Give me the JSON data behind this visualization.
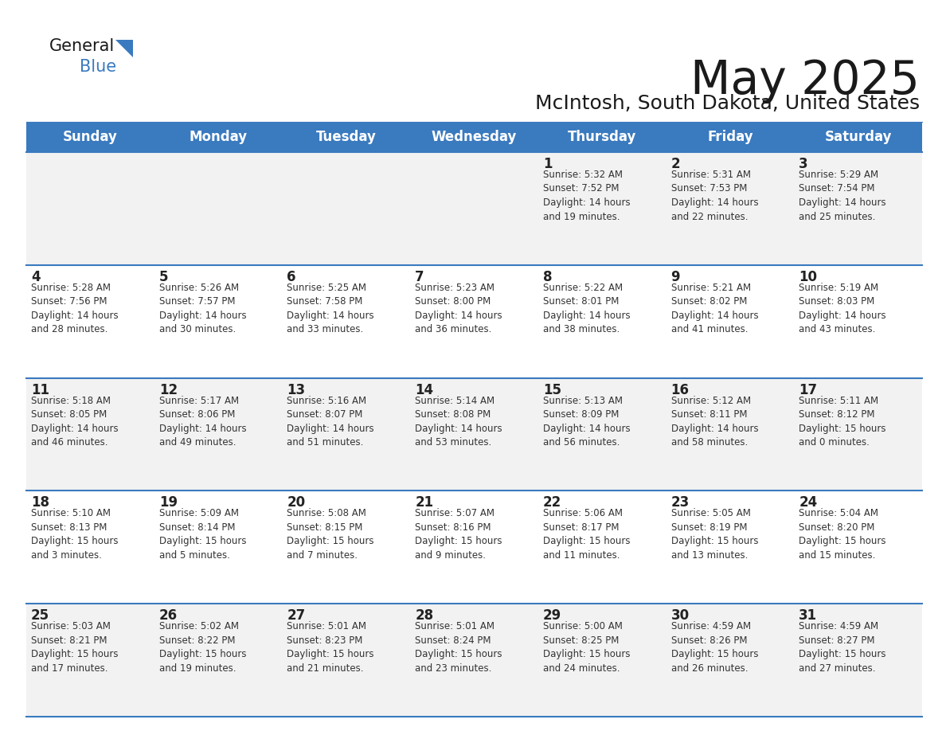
{
  "title": "May 2025",
  "subtitle": "McIntosh, South Dakota, United States",
  "header_color": "#3a7abf",
  "header_text_color": "#ffffff",
  "cell_bg_odd": "#f2f2f2",
  "cell_bg_even": "#ffffff",
  "day_names": [
    "Sunday",
    "Monday",
    "Tuesday",
    "Wednesday",
    "Thursday",
    "Friday",
    "Saturday"
  ],
  "weeks": [
    [
      {
        "day": "",
        "sunrise": "",
        "sunset": "",
        "daylight": ""
      },
      {
        "day": "",
        "sunrise": "",
        "sunset": "",
        "daylight": ""
      },
      {
        "day": "",
        "sunrise": "",
        "sunset": "",
        "daylight": ""
      },
      {
        "day": "",
        "sunrise": "",
        "sunset": "",
        "daylight": ""
      },
      {
        "day": "1",
        "sunrise": "5:32 AM",
        "sunset": "7:52 PM",
        "daylight": "14 hours\nand 19 minutes."
      },
      {
        "day": "2",
        "sunrise": "5:31 AM",
        "sunset": "7:53 PM",
        "daylight": "14 hours\nand 22 minutes."
      },
      {
        "day": "3",
        "sunrise": "5:29 AM",
        "sunset": "7:54 PM",
        "daylight": "14 hours\nand 25 minutes."
      }
    ],
    [
      {
        "day": "4",
        "sunrise": "5:28 AM",
        "sunset": "7:56 PM",
        "daylight": "14 hours\nand 28 minutes."
      },
      {
        "day": "5",
        "sunrise": "5:26 AM",
        "sunset": "7:57 PM",
        "daylight": "14 hours\nand 30 minutes."
      },
      {
        "day": "6",
        "sunrise": "5:25 AM",
        "sunset": "7:58 PM",
        "daylight": "14 hours\nand 33 minutes."
      },
      {
        "day": "7",
        "sunrise": "5:23 AM",
        "sunset": "8:00 PM",
        "daylight": "14 hours\nand 36 minutes."
      },
      {
        "day": "8",
        "sunrise": "5:22 AM",
        "sunset": "8:01 PM",
        "daylight": "14 hours\nand 38 minutes."
      },
      {
        "day": "9",
        "sunrise": "5:21 AM",
        "sunset": "8:02 PM",
        "daylight": "14 hours\nand 41 minutes."
      },
      {
        "day": "10",
        "sunrise": "5:19 AM",
        "sunset": "8:03 PM",
        "daylight": "14 hours\nand 43 minutes."
      }
    ],
    [
      {
        "day": "11",
        "sunrise": "5:18 AM",
        "sunset": "8:05 PM",
        "daylight": "14 hours\nand 46 minutes."
      },
      {
        "day": "12",
        "sunrise": "5:17 AM",
        "sunset": "8:06 PM",
        "daylight": "14 hours\nand 49 minutes."
      },
      {
        "day": "13",
        "sunrise": "5:16 AM",
        "sunset": "8:07 PM",
        "daylight": "14 hours\nand 51 minutes."
      },
      {
        "day": "14",
        "sunrise": "5:14 AM",
        "sunset": "8:08 PM",
        "daylight": "14 hours\nand 53 minutes."
      },
      {
        "day": "15",
        "sunrise": "5:13 AM",
        "sunset": "8:09 PM",
        "daylight": "14 hours\nand 56 minutes."
      },
      {
        "day": "16",
        "sunrise": "5:12 AM",
        "sunset": "8:11 PM",
        "daylight": "14 hours\nand 58 minutes."
      },
      {
        "day": "17",
        "sunrise": "5:11 AM",
        "sunset": "8:12 PM",
        "daylight": "15 hours\nand 0 minutes."
      }
    ],
    [
      {
        "day": "18",
        "sunrise": "5:10 AM",
        "sunset": "8:13 PM",
        "daylight": "15 hours\nand 3 minutes."
      },
      {
        "day": "19",
        "sunrise": "5:09 AM",
        "sunset": "8:14 PM",
        "daylight": "15 hours\nand 5 minutes."
      },
      {
        "day": "20",
        "sunrise": "5:08 AM",
        "sunset": "8:15 PM",
        "daylight": "15 hours\nand 7 minutes."
      },
      {
        "day": "21",
        "sunrise": "5:07 AM",
        "sunset": "8:16 PM",
        "daylight": "15 hours\nand 9 minutes."
      },
      {
        "day": "22",
        "sunrise": "5:06 AM",
        "sunset": "8:17 PM",
        "daylight": "15 hours\nand 11 minutes."
      },
      {
        "day": "23",
        "sunrise": "5:05 AM",
        "sunset": "8:19 PM",
        "daylight": "15 hours\nand 13 minutes."
      },
      {
        "day": "24",
        "sunrise": "5:04 AM",
        "sunset": "8:20 PM",
        "daylight": "15 hours\nand 15 minutes."
      }
    ],
    [
      {
        "day": "25",
        "sunrise": "5:03 AM",
        "sunset": "8:21 PM",
        "daylight": "15 hours\nand 17 minutes."
      },
      {
        "day": "26",
        "sunrise": "5:02 AM",
        "sunset": "8:22 PM",
        "daylight": "15 hours\nand 19 minutes."
      },
      {
        "day": "27",
        "sunrise": "5:01 AM",
        "sunset": "8:23 PM",
        "daylight": "15 hours\nand 21 minutes."
      },
      {
        "day": "28",
        "sunrise": "5:01 AM",
        "sunset": "8:24 PM",
        "daylight": "15 hours\nand 23 minutes."
      },
      {
        "day": "29",
        "sunrise": "5:00 AM",
        "sunset": "8:25 PM",
        "daylight": "15 hours\nand 24 minutes."
      },
      {
        "day": "30",
        "sunrise": "4:59 AM",
        "sunset": "8:26 PM",
        "daylight": "15 hours\nand 26 minutes."
      },
      {
        "day": "31",
        "sunrise": "4:59 AM",
        "sunset": "8:27 PM",
        "daylight": "15 hours\nand 27 minutes."
      }
    ]
  ],
  "line_color": "#3a7abf",
  "text_color": "#1a1a1a",
  "day_number_color": "#222222",
  "info_text_color": "#333333",
  "title_fontsize": 42,
  "subtitle_fontsize": 18,
  "header_fontsize": 12,
  "day_num_fontsize": 12,
  "info_fontsize": 8.5
}
